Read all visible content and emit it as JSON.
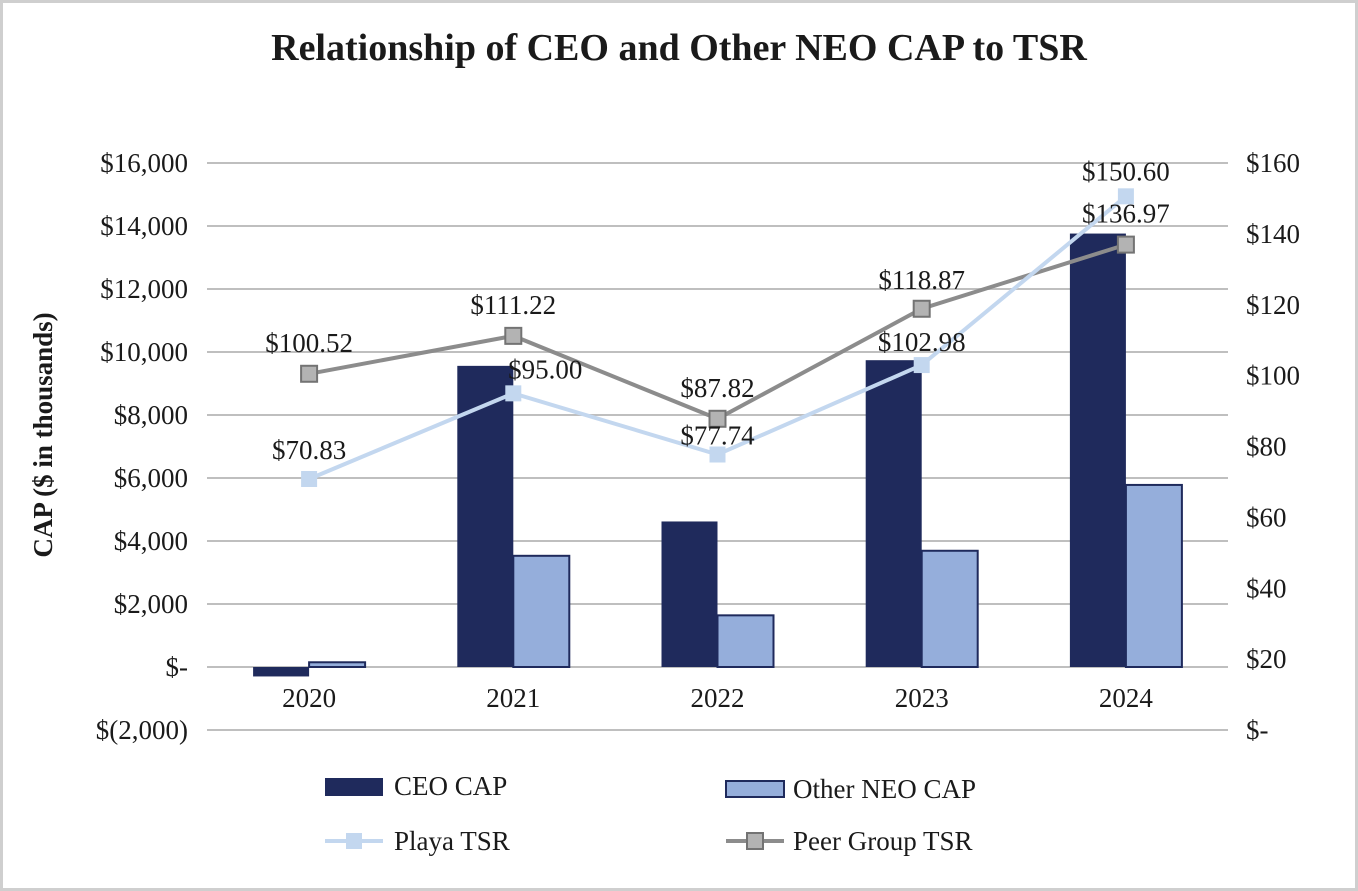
{
  "chart_data": {
    "type": "bar",
    "title": "Relationship of CEO and Other NEO CAP to TSR",
    "ylabel": "CAP ($ in thousands)",
    "y2label": "",
    "categories": [
      "2020",
      "2021",
      "2022",
      "2023",
      "2024"
    ],
    "ylim": [
      -2000,
      16000
    ],
    "y2lim": [
      0,
      160
    ],
    "yticks": [
      -2000,
      0,
      2000,
      4000,
      6000,
      8000,
      10000,
      12000,
      14000,
      16000
    ],
    "ytick_labels": [
      "$(2,000)",
      "$-",
      "$2,000",
      "$4,000",
      "$6,000",
      "$8,000",
      "$10,000",
      "$12,000",
      "$14,000",
      "$16,000"
    ],
    "y2ticks": [
      0,
      20,
      40,
      60,
      80,
      100,
      120,
      140,
      160
    ],
    "y2tick_labels": [
      "$-",
      "$20",
      "$40",
      "$60",
      "$80",
      "$100",
      "$120",
      "$140",
      "$160"
    ],
    "grid": true,
    "legend_position": "bottom",
    "series": [
      {
        "name": "CEO CAP",
        "type": "bar",
        "axis": "left",
        "color": "#1f2a5c",
        "values": [
          -300,
          9560,
          4620,
          9740,
          13760
        ]
      },
      {
        "name": "Other NEO CAP",
        "type": "bar",
        "axis": "left",
        "color": "#95aedb",
        "edge": "#1f2a5c",
        "values": [
          150,
          3530,
          1640,
          3690,
          5780
        ]
      },
      {
        "name": "Playa TSR",
        "type": "line",
        "axis": "right",
        "color": "#c3d7ef",
        "marker": "square",
        "values": [
          70.83,
          95.0,
          77.74,
          102.98,
          150.6
        ],
        "labels": [
          "$70.83",
          "$95.00",
          "$77.74",
          "$102.98",
          "$150.60"
        ]
      },
      {
        "name": "Peer Group TSR",
        "type": "line",
        "axis": "right",
        "color": "#8c8c8c",
        "marker": "square",
        "values": [
          100.52,
          111.22,
          87.82,
          118.87,
          136.97
        ],
        "labels": [
          "$100.52",
          "$111.22",
          "$87.82",
          "$118.87",
          "$136.97"
        ]
      }
    ]
  }
}
